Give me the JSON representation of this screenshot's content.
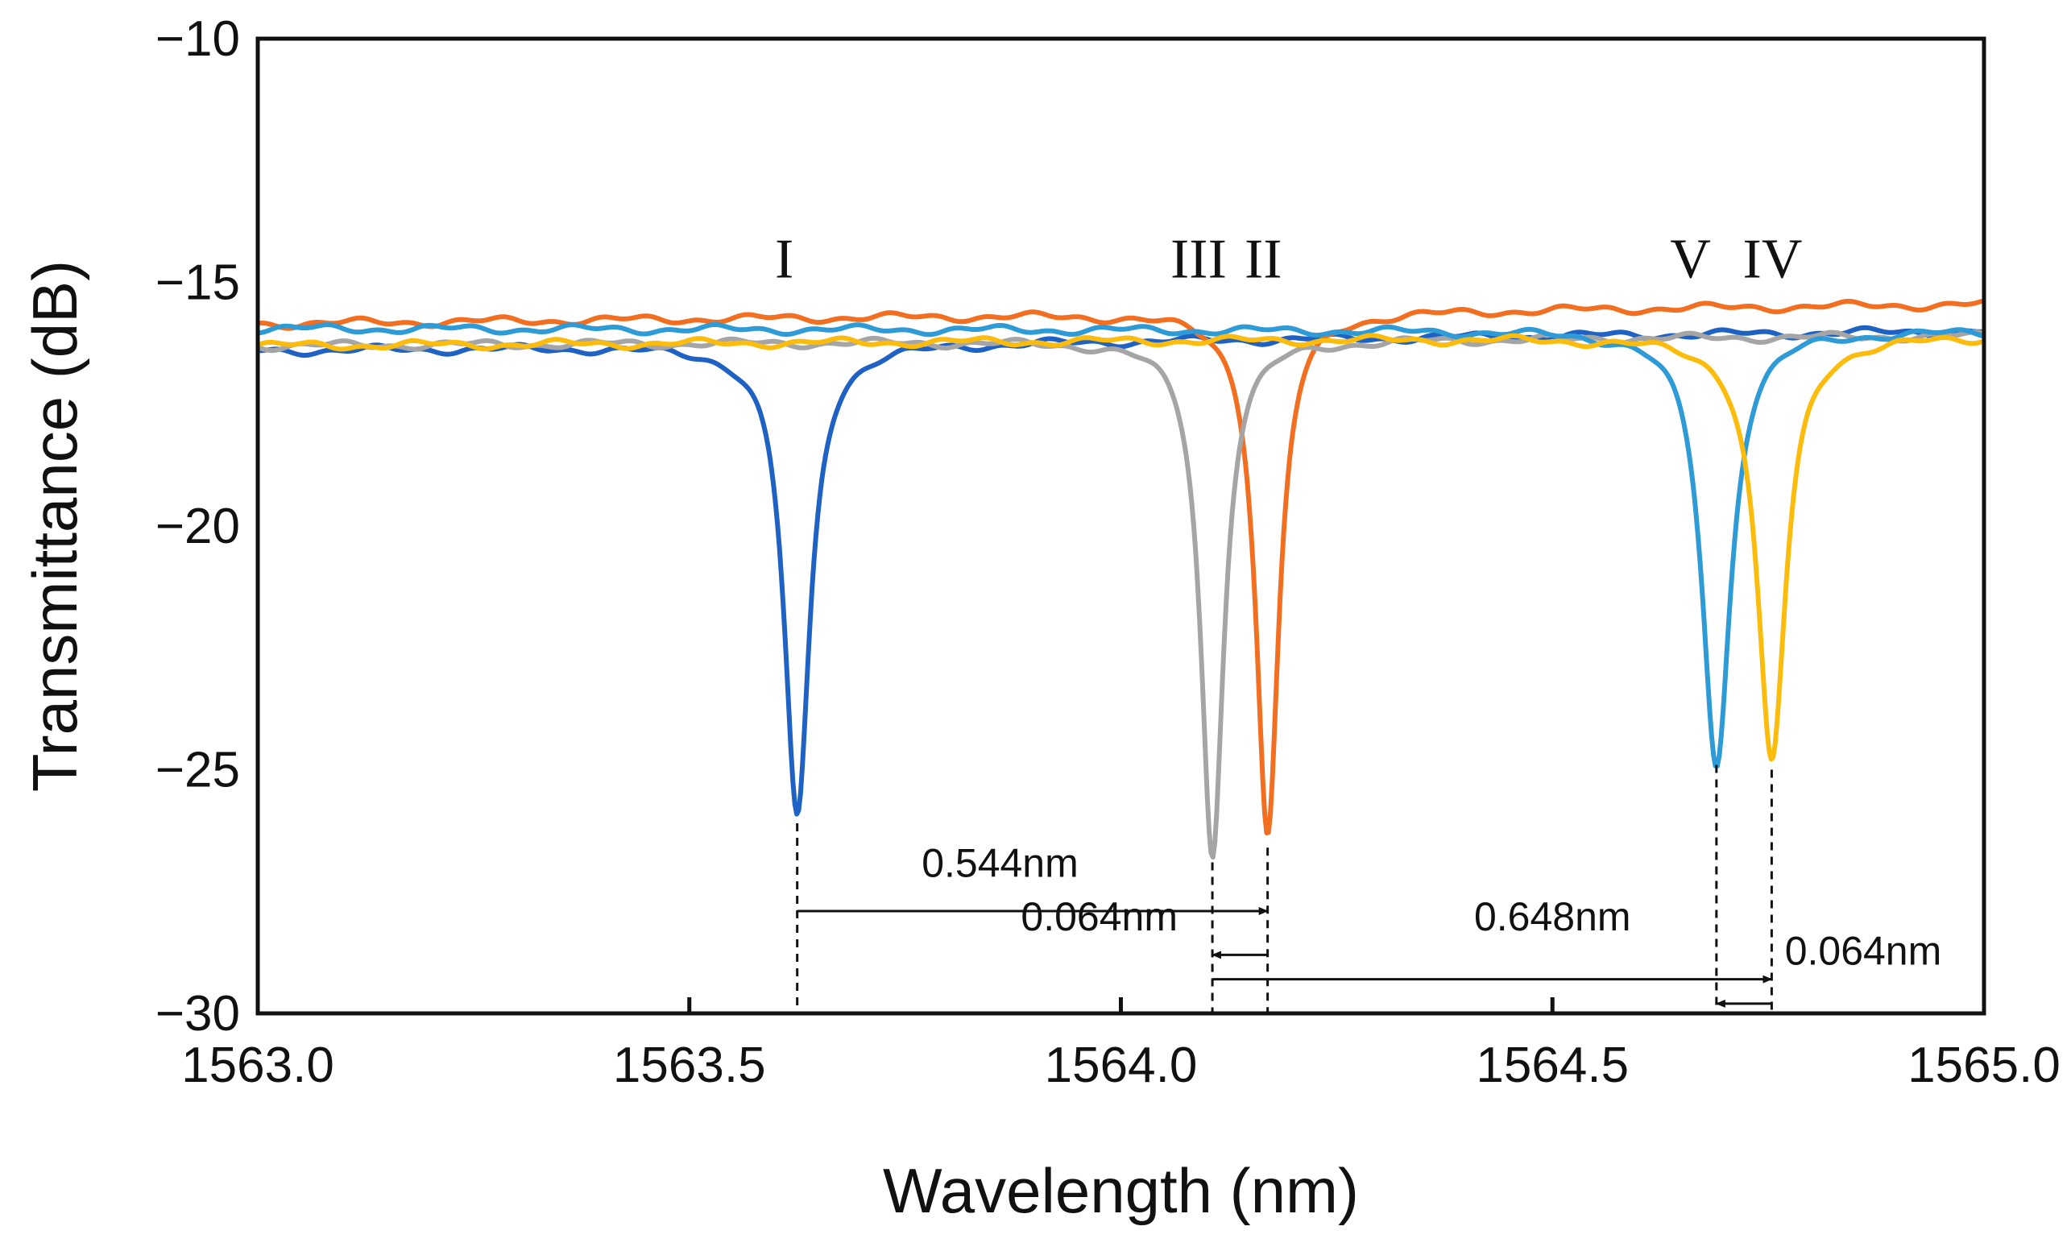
{
  "chart_data": {
    "type": "line",
    "title": "",
    "xlabel": "Wavelength (nm)",
    "ylabel": "Transmittance (dB)",
    "xlim": [
      1563.0,
      1565.0
    ],
    "ylim": [
      -30,
      -10
    ],
    "xticks": [
      1563.0,
      1563.5,
      1564.0,
      1564.5,
      1565.0
    ],
    "xtick_labels": [
      "1563.0",
      "1563.5",
      "1564.0",
      "1564.5",
      "1565.0"
    ],
    "yticks": [
      -10,
      -15,
      -20,
      -25,
      -30
    ],
    "ytick_labels": [
      "−10",
      "−15",
      "−20",
      "−25",
      "−30"
    ],
    "grid": false,
    "legend": "none",
    "series": [
      {
        "color": "#1f62c4",
        "baseline_left": -16.4,
        "baseline_right": -16.0,
        "dip_center": 1563.625,
        "dip_min": -26.1,
        "dip_width": 0.018
      },
      {
        "color": "#f26f21",
        "baseline_left": -15.85,
        "baseline_right": -15.45,
        "dip_center": 1564.17,
        "dip_min": -26.6,
        "dip_width": 0.016
      },
      {
        "color": "#a5a5a5",
        "baseline_left": -16.3,
        "baseline_right": -16.1,
        "dip_center": 1564.106,
        "dip_min": -26.9,
        "dip_width": 0.016
      },
      {
        "color": "#2e9ad6",
        "baseline_left": -15.95,
        "baseline_right": -16.0,
        "dip_center": 1564.69,
        "dip_min": -24.9,
        "dip_width": 0.02
      },
      {
        "color": "#fcbc0e",
        "baseline_left": -16.3,
        "baseline_right": -16.1,
        "dip_center": 1564.754,
        "dip_min": -25.0,
        "dip_width": 0.02
      }
    ],
    "peak_labels": [
      {
        "text": "I",
        "x": 1563.61,
        "y": -14.9
      },
      {
        "text": "III",
        "x": 1564.09,
        "y": -14.9
      },
      {
        "text": "II",
        "x": 1564.165,
        "y": -14.9
      },
      {
        "text": "V",
        "x": 1564.66,
        "y": -14.9
      },
      {
        "text": "IV",
        "x": 1564.755,
        "y": -14.9
      }
    ],
    "annotations": [
      {
        "text": "0.544nm",
        "from": 1563.625,
        "to": 1564.17,
        "y": -27.9,
        "text_x": 1563.86,
        "text_y": -27.2
      },
      {
        "text": "0.064nm",
        "from": 1564.17,
        "to": 1564.106,
        "y": -28.8,
        "text_x": 1563.975,
        "text_y": -28.3
      },
      {
        "text": "0.648nm",
        "from": 1564.106,
        "to": 1564.754,
        "y": -29.3,
        "text_x": 1564.5,
        "text_y": -28.3
      },
      {
        "text": "0.064nm",
        "from": 1564.754,
        "to": 1564.69,
        "y": -29.8,
        "text_x": 1564.86,
        "text_y": -29.0
      }
    ],
    "dashed_markers": [
      1563.625,
      1564.106,
      1564.17,
      1564.69,
      1564.754
    ]
  }
}
